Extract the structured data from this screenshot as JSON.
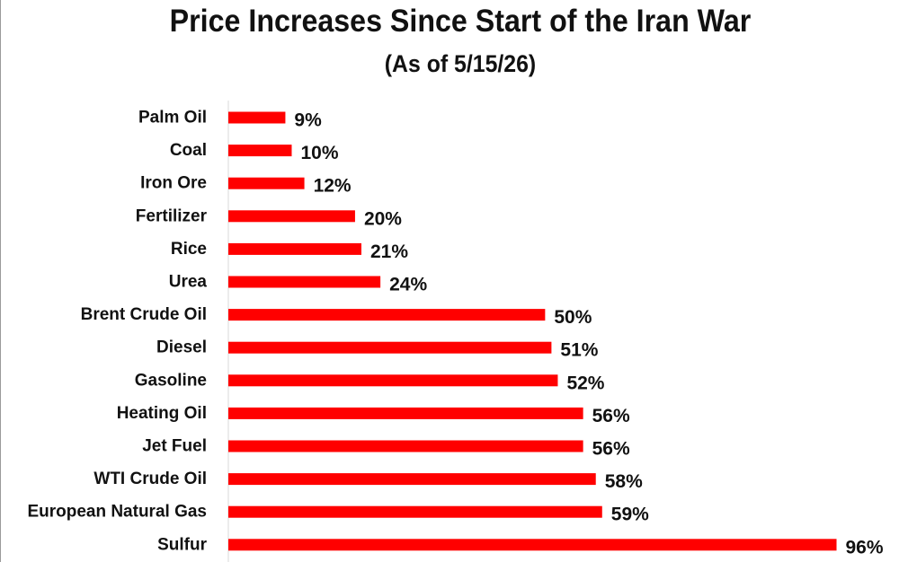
{
  "chart_data": {
    "type": "bar",
    "orientation": "horizontal",
    "title": "Price Increases Since Start of the Iran War",
    "subtitle": "(As of 5/15/26)",
    "categories": [
      "Palm Oil",
      "Coal",
      "Iron Ore",
      "Fertilizer",
      "Rice",
      "Urea",
      "Brent Crude Oil",
      "Diesel",
      "Gasoline",
      "Heating Oil",
      "Jet Fuel",
      "WTI Crude Oil",
      "European Natural Gas",
      "Sulfur"
    ],
    "values": [
      9,
      10,
      12,
      20,
      21,
      24,
      50,
      51,
      52,
      56,
      56,
      58,
      59,
      96
    ],
    "data_labels": [
      "9%",
      "10%",
      "12%",
      "20%",
      "21%",
      "24%",
      "50%",
      "51%",
      "52%",
      "56%",
      "56%",
      "58%",
      "59%",
      "96%"
    ],
    "value_suffix": "%",
    "xlim": [
      0,
      100
    ],
    "grid": false,
    "legend": "none",
    "bar_color": "#ff0000",
    "text_color": "#111111"
  }
}
